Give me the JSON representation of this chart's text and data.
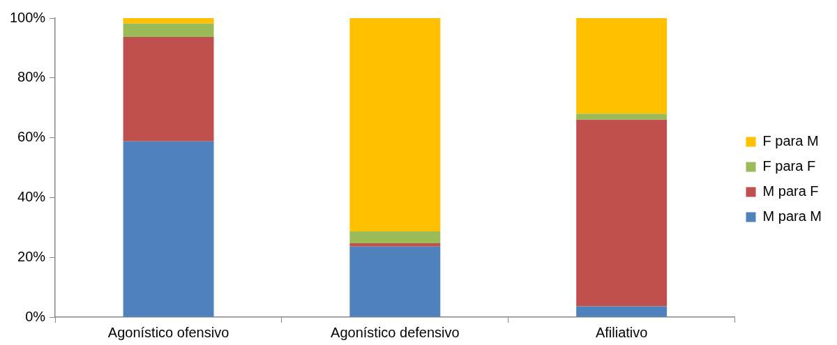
{
  "chart_data": {
    "type": "bar",
    "stacked": true,
    "categories": [
      "Agonístico ofensivo",
      "Agonístico defensivo",
      "Afiliativo"
    ],
    "series": [
      {
        "name": "M para M",
        "color": "#4f81bd",
        "values": [
          58.8,
          23.6,
          3.6
        ]
      },
      {
        "name": "M para F",
        "color": "#c0504d",
        "values": [
          34.9,
          1.1,
          62.4
        ]
      },
      {
        "name": "F para F",
        "color": "#9bbb59",
        "values": [
          4.5,
          4.0,
          2.0
        ]
      },
      {
        "name": "F para M",
        "color": "#ffc000",
        "values": [
          1.8,
          71.3,
          32.0
        ]
      }
    ],
    "ylim": [
      0,
      100
    ],
    "yticks": [
      {
        "value": 0,
        "label": "0%"
      },
      {
        "value": 20,
        "label": "20%"
      },
      {
        "value": 40,
        "label": "40%"
      },
      {
        "value": 60,
        "label": "60%"
      },
      {
        "value": 80,
        "label": "80%"
      },
      {
        "value": 100,
        "label": "100%"
      }
    ],
    "grid": false,
    "legend": "right"
  }
}
